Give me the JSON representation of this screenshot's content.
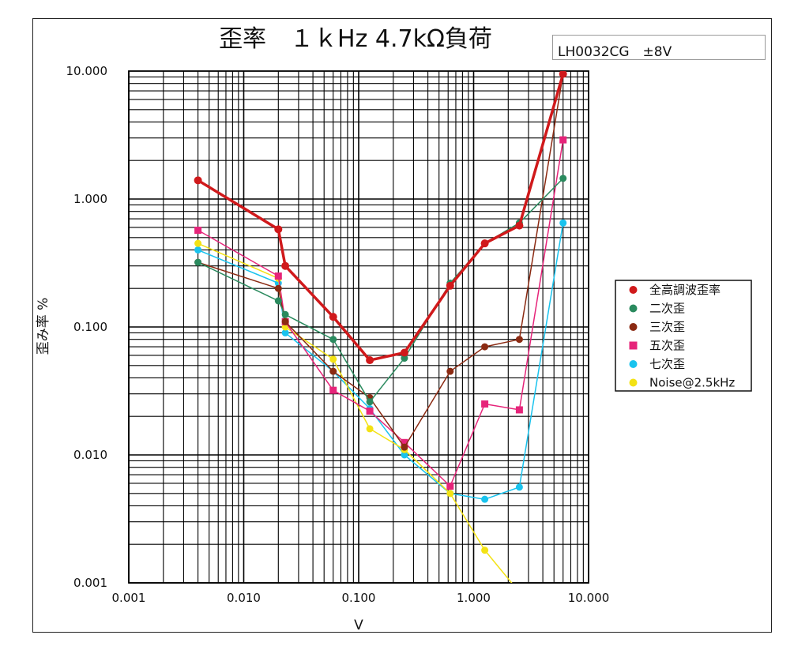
{
  "chart_data": {
    "type": "line",
    "title": "歪率　１ｋHz 4.7kΩ負荷",
    "info": "LH0032CG　±8V",
    "xlabel": "V",
    "ylabel": "歪み率 %",
    "xscale": "log",
    "yscale": "log",
    "xlim": [
      0.001,
      10
    ],
    "ylim": [
      0.001,
      10
    ],
    "xticks": [
      0.001,
      0.01,
      0.1,
      1,
      10
    ],
    "xtick_labels": [
      "0.001",
      "0.010",
      "0.100",
      "1.000",
      "10.000"
    ],
    "yticks": [
      0.001,
      0.01,
      0.1,
      1,
      10
    ],
    "ytick_labels": [
      "0.001",
      "0.010",
      "0.100",
      "1.000",
      "10.000"
    ],
    "grid": true,
    "legend_position": "right",
    "series": [
      {
        "name": "全高調波歪率",
        "color": "#d0191b",
        "marker": "circle",
        "width": 3.5,
        "points": [
          [
            0.004,
            1.4
          ],
          [
            0.02,
            0.58
          ],
          [
            0.023,
            0.3
          ],
          [
            0.06,
            0.12
          ],
          [
            0.125,
            0.055
          ],
          [
            0.25,
            0.063
          ],
          [
            0.625,
            0.21
          ],
          [
            1.25,
            0.45
          ],
          [
            2.5,
            0.62
          ],
          [
            6,
            9.5
          ]
        ]
      },
      {
        "name": "二次歪",
        "color": "#2a8a5e",
        "marker": "circle",
        "width": 1.5,
        "points": [
          [
            0.004,
            0.32
          ],
          [
            0.02,
            0.16
          ],
          [
            0.023,
            0.125
          ],
          [
            0.06,
            0.08
          ],
          [
            0.125,
            0.026
          ],
          [
            0.25,
            0.057
          ],
          [
            0.625,
            0.22
          ],
          [
            1.25,
            0.45
          ],
          [
            2.5,
            0.65
          ],
          [
            6,
            1.45
          ]
        ]
      },
      {
        "name": "三次歪",
        "color": "#8b2a12",
        "marker": "circle",
        "width": 1.5,
        "points": [
          [
            0.004,
            0.32
          ],
          [
            0.02,
            0.2
          ],
          [
            0.023,
            0.11
          ],
          [
            0.06,
            0.045
          ],
          [
            0.125,
            0.028
          ],
          [
            0.25,
            0.0115
          ],
          [
            0.625,
            0.045
          ],
          [
            1.25,
            0.07
          ],
          [
            2.5,
            0.08
          ],
          [
            6,
            9.5
          ]
        ]
      },
      {
        "name": "五次歪",
        "color": "#e6247a",
        "marker": "square",
        "width": 1.5,
        "points": [
          [
            0.004,
            0.57
          ],
          [
            0.02,
            0.25
          ],
          [
            0.023,
            0.11
          ],
          [
            0.06,
            0.032
          ],
          [
            0.125,
            0.022
          ],
          [
            0.25,
            0.0125
          ],
          [
            0.625,
            0.0057
          ],
          [
            1.25,
            0.025
          ],
          [
            2.5,
            0.0225
          ],
          [
            6,
            2.9
          ]
        ]
      },
      {
        "name": "七次歪",
        "color": "#19c3ee",
        "marker": "circle",
        "width": 1.5,
        "points": [
          [
            0.004,
            0.4
          ],
          [
            0.02,
            0.22
          ],
          [
            0.023,
            0.09
          ],
          [
            0.06,
            0.045
          ],
          [
            0.125,
            0.023
          ],
          [
            0.25,
            0.01
          ],
          [
            0.625,
            0.005
          ],
          [
            1.25,
            0.0045
          ],
          [
            2.5,
            0.0056
          ],
          [
            6,
            0.65
          ]
        ]
      },
      {
        "name": "Noise@2.5kHz",
        "color": "#f3e214",
        "marker": "circle",
        "width": 1.5,
        "points": [
          [
            0.004,
            0.45
          ],
          [
            0.02,
            0.24
          ],
          [
            0.023,
            0.1
          ],
          [
            0.06,
            0.056
          ],
          [
            0.125,
            0.016
          ],
          [
            0.25,
            0.011
          ],
          [
            0.625,
            0.005
          ],
          [
            1.25,
            0.0018
          ],
          [
            2.2,
            0.00097
          ]
        ]
      }
    ]
  }
}
